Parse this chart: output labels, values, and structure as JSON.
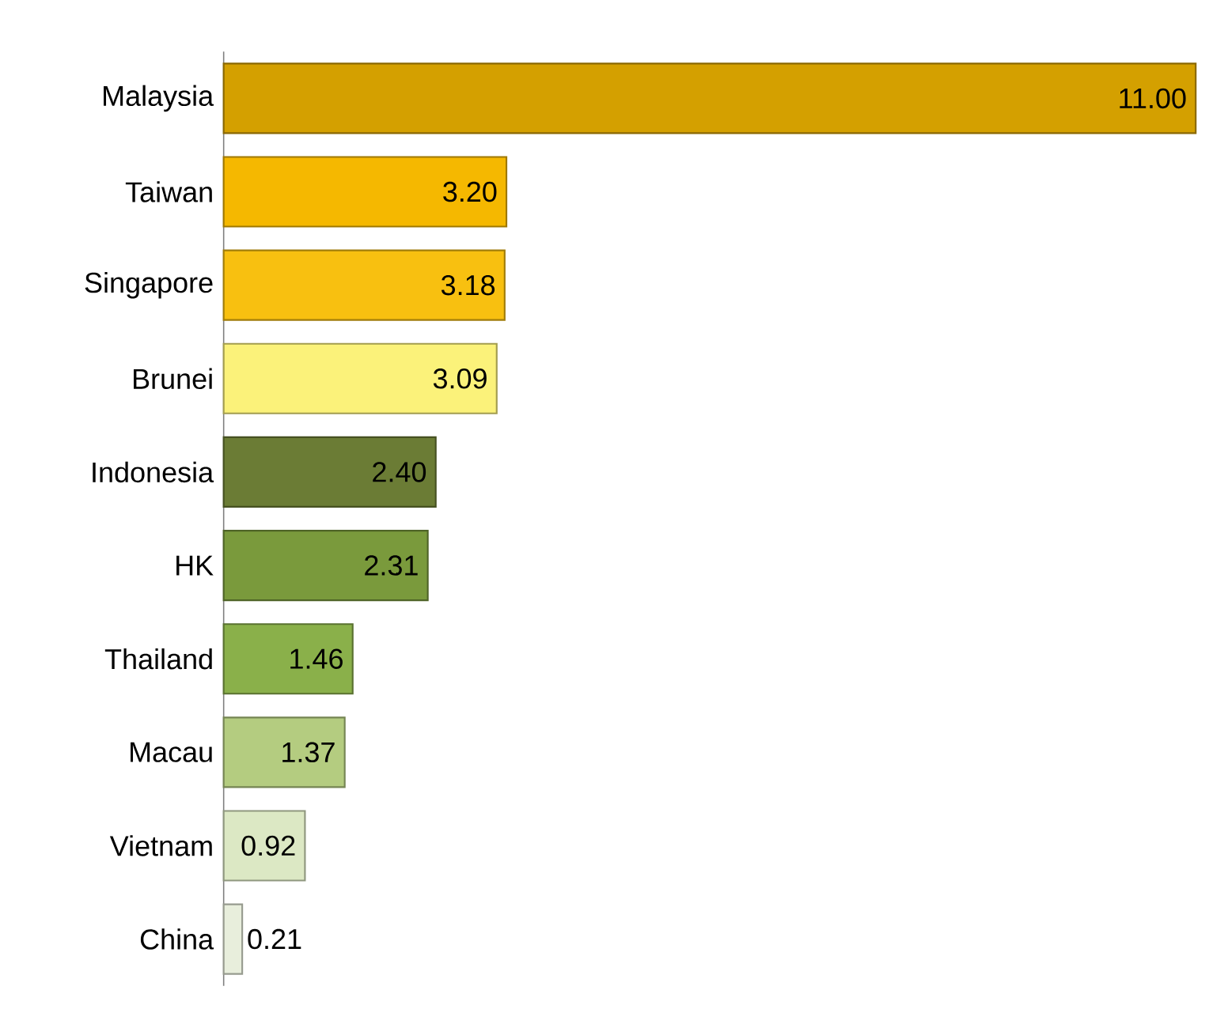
{
  "chart_data": {
    "type": "bar",
    "orientation": "horizontal",
    "categories": [
      "Malaysia",
      "Taiwan",
      "Singapore",
      "Brunei",
      "Indonesia",
      "HK",
      "Thailand",
      "Macau",
      "Vietnam",
      "China"
    ],
    "values": [
      11.0,
      3.2,
      3.18,
      3.09,
      2.4,
      2.31,
      1.46,
      1.37,
      0.92,
      0.21
    ],
    "value_labels": [
      "11.00",
      "3.20",
      "3.18",
      "3.09",
      "2.40",
      "2.31",
      "1.46",
      "1.37",
      "0.92",
      "0.21"
    ],
    "colors": [
      "#d4a000",
      "#f5b800",
      "#f8c010",
      "#fbf27a",
      "#6b7c35",
      "#7a9a3c",
      "#8ab04a",
      "#b4cc80",
      "#dce8c4",
      "#e8eedc"
    ]
  }
}
